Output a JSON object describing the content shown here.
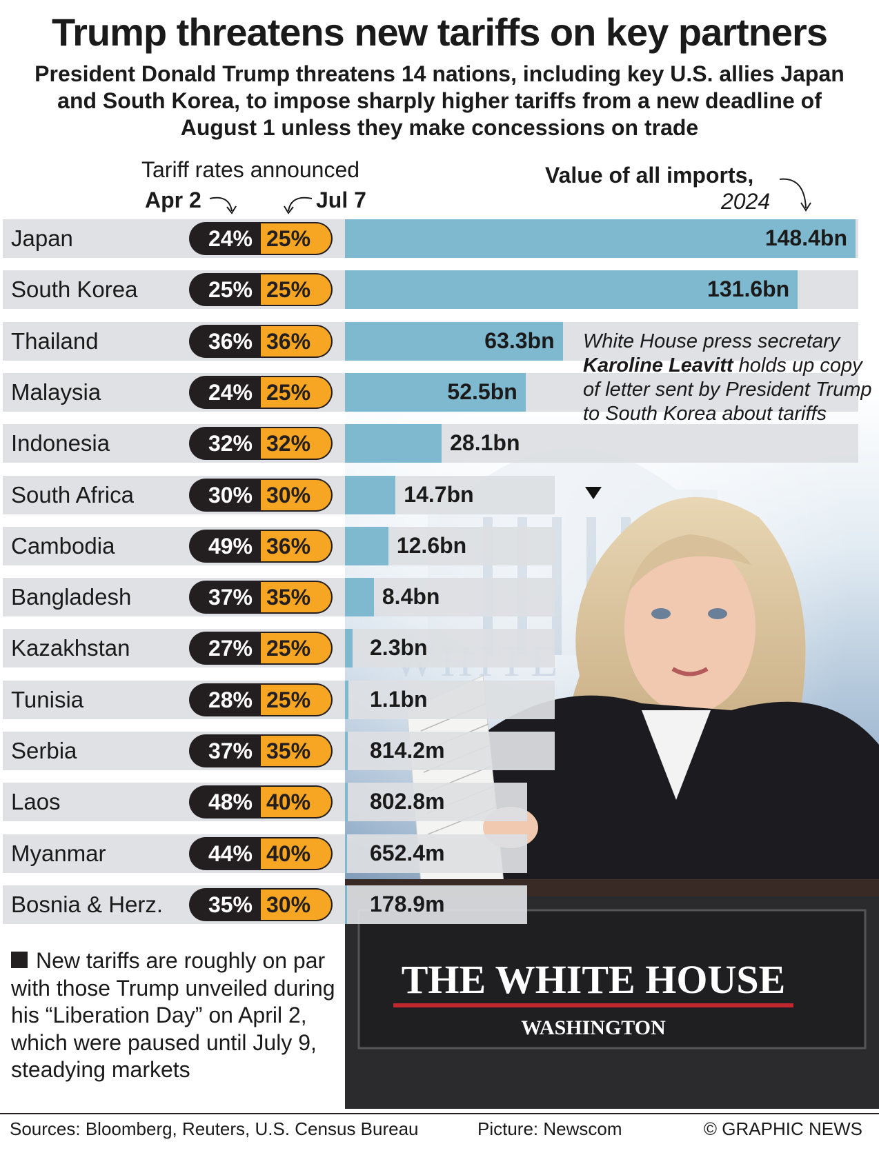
{
  "title": "Trump threatens new tariffs on key partners",
  "subtitle": "President Donald Trump threatens 14 nations, including key U.S. allies Japan and South Korea, to impose sharply higher tariffs from a new deadline of August 1 unless they make concessions on trade",
  "headers": {
    "rates": "Tariff rates announced",
    "apr": "Apr 2",
    "jul": "Jul 7",
    "value": "Value of all imports,",
    "year": "2024"
  },
  "colors": {
    "bar": "#7fb9d0",
    "apr_pill": "#231f20",
    "jul_pill": "#f7a623",
    "row_bg": "#dddfe2"
  },
  "chart_data": {
    "type": "bar",
    "title": "Value of all imports, 2024",
    "categories": [
      "Japan",
      "South Korea",
      "Thailand",
      "Malaysia",
      "Indonesia",
      "South Africa",
      "Cambodia",
      "Bangladesh",
      "Kazakhstan",
      "Tunisia",
      "Serbia",
      "Laos",
      "Myanmar",
      "Bosnia & Herz."
    ],
    "series": [
      {
        "name": "Value of all imports, 2024 ($bn)",
        "values": [
          148.4,
          131.6,
          63.3,
          52.5,
          28.1,
          14.7,
          12.6,
          8.4,
          2.3,
          1.1,
          0.8142,
          0.8028,
          0.6524,
          0.1789
        ]
      },
      {
        "name": "Tariff rate announced Apr 2 (%)",
        "values": [
          24,
          25,
          36,
          24,
          32,
          30,
          49,
          37,
          27,
          28,
          37,
          48,
          44,
          35
        ]
      },
      {
        "name": "Tariff rate announced Jul 7 (%)",
        "values": [
          25,
          25,
          36,
          25,
          32,
          30,
          36,
          35,
          25,
          25,
          35,
          40,
          40,
          30
        ]
      }
    ],
    "value_labels": [
      "148.4bn",
      "131.6bn",
      "63.3bn",
      "52.5bn",
      "28.1bn",
      "14.7bn",
      "12.6bn",
      "8.4bn",
      "2.3bn",
      "1.1bn",
      "814.2m",
      "802.8m",
      "652.4m",
      "178.9m"
    ],
    "apr_labels": [
      "24%",
      "25%",
      "36%",
      "24%",
      "32%",
      "30%",
      "49%",
      "37%",
      "27%",
      "28%",
      "37%",
      "48%",
      "44%",
      "35%"
    ],
    "jul_labels": [
      "25%",
      "25%",
      "36%",
      "25%",
      "32%",
      "30%",
      "36%",
      "35%",
      "25%",
      "25%",
      "35%",
      "40%",
      "40%",
      "30%"
    ],
    "xlim": [
      0,
      148.4
    ],
    "xlabel": "",
    "ylabel": ""
  },
  "caption": {
    "before": "White House press secretary ",
    "name": "Karoline Leavitt",
    "after": " holds up copy of letter sent by President Trump to South Korea about tariffs"
  },
  "photo": {
    "sign_main": "THE WHITE HOUSE",
    "sign_sub": "WASHINGTON",
    "wall_text": "WHITE"
  },
  "note": "New tariffs are roughly on par with those Trump unveiled during his “Liberation Day” on April 2, which were paused until July 9, steadying markets",
  "footer": {
    "sources": "Sources: Bloomberg, Reuters, U.S. Census Bureau",
    "picture": "Picture: Newscom",
    "credit": "© GRAPHIC NEWS"
  }
}
